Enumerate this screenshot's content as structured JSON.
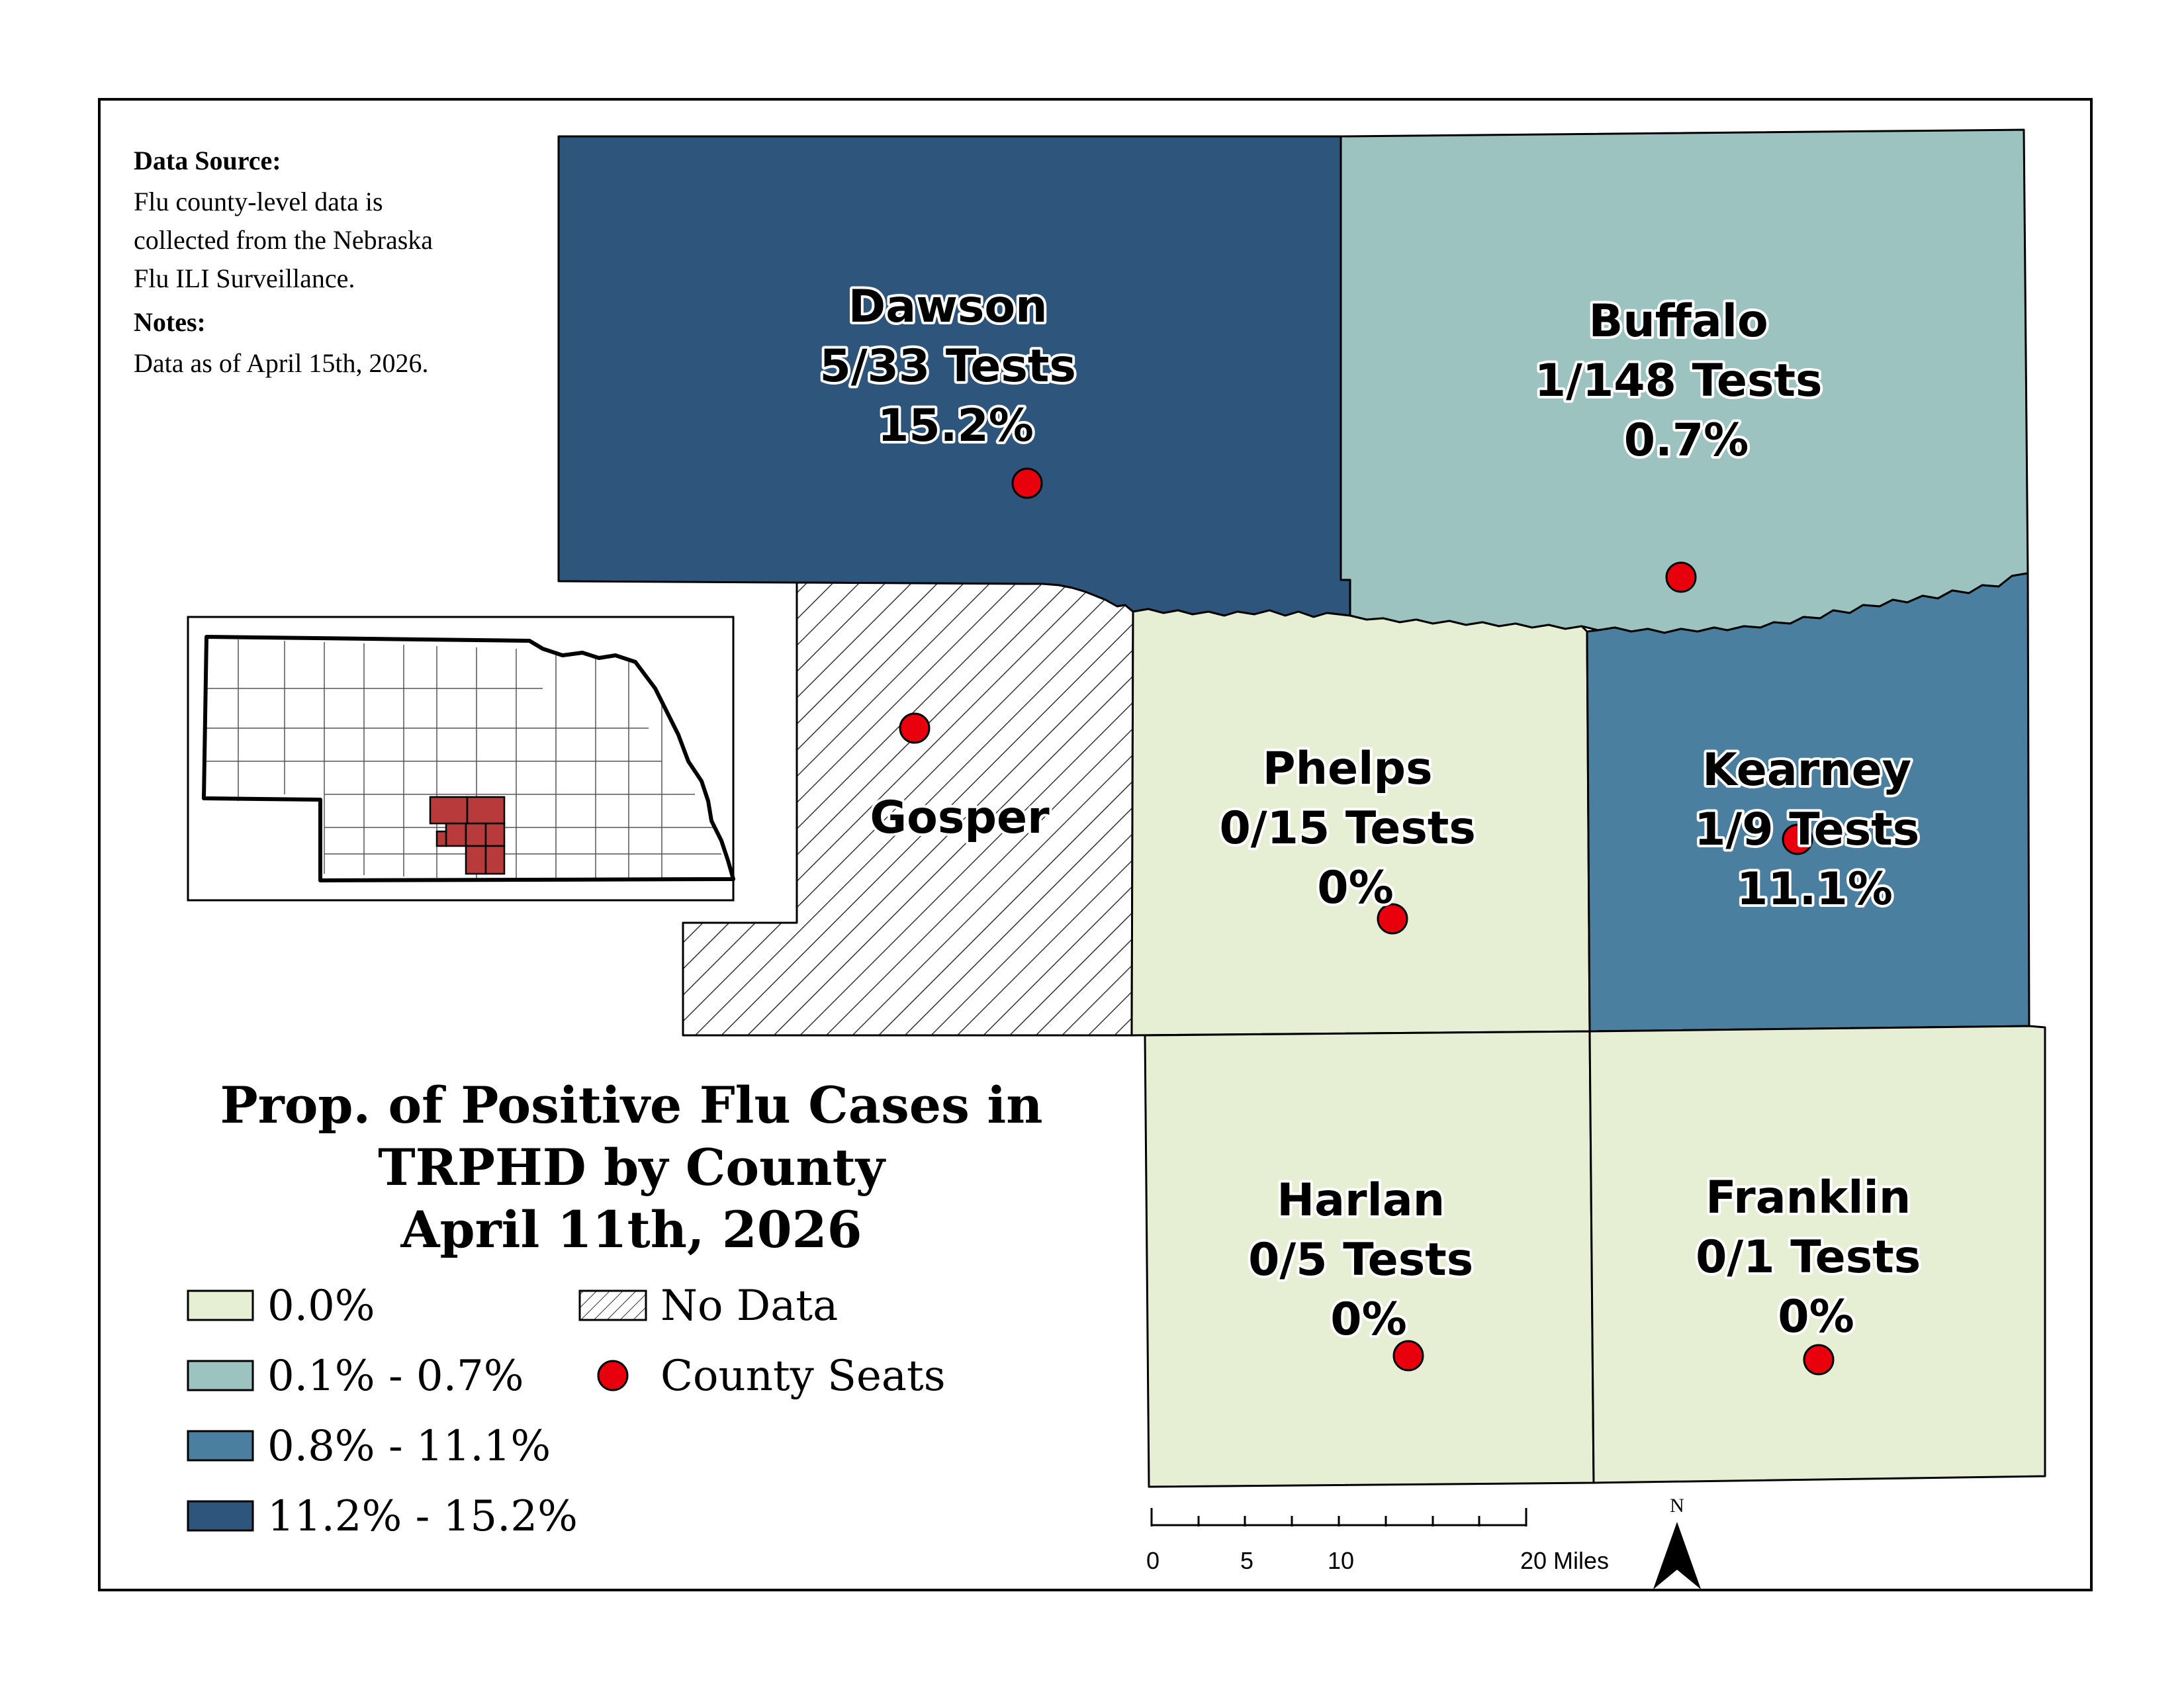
{
  "map": {
    "title_lines": [
      "Prop. of Positive Flu Cases in",
      "TRPHD by County",
      "April 11th, 2026"
    ],
    "data_source": {
      "heading": "Data Source:",
      "lines": [
        "Flu county-level data is",
        "collected from the Nebraska",
        "Flu ILI Surveillance."
      ]
    },
    "notes": {
      "heading": "Notes:",
      "lines": [
        "Data as of April 15th, 2026."
      ]
    },
    "counties": [
      {
        "name": "Dawson",
        "tests": "5/33 Tests",
        "percent": "15.2%",
        "class": "11.2% - 15.2%"
      },
      {
        "name": "Buffalo",
        "tests": "1/148 Tests",
        "percent": "0.7%",
        "class": "0.1% - 0.7%"
      },
      {
        "name": "Gosper",
        "tests": "",
        "percent": "",
        "class": "No Data"
      },
      {
        "name": "Phelps",
        "tests": "0/15 Tests",
        "percent": "0%",
        "class": "0.0%"
      },
      {
        "name": "Kearney",
        "tests": "1/9 Tests",
        "percent": "11.1%",
        "class": "0.8% - 11.1%"
      },
      {
        "name": "Harlan",
        "tests": "0/5 Tests",
        "percent": "0%",
        "class": "0.0%"
      },
      {
        "name": "Franklin",
        "tests": "0/1 Tests",
        "percent": "0%",
        "class": "0.0%"
      }
    ],
    "legend": {
      "classes": [
        {
          "label": "0.0%",
          "color": "#e6eed4"
        },
        {
          "label": "0.1% - 0.7%",
          "color": "#9cc3c0"
        },
        {
          "label": "0.8% - 11.1%",
          "color": "#4a7f9f"
        },
        {
          "label": "11.2% - 15.2%",
          "color": "#2e557c"
        }
      ],
      "no_data_label": "No Data",
      "county_seats_label": "County Seats",
      "county_seat_color": "#e8000d"
    },
    "scale_bar": {
      "ticks": [
        "0",
        "5",
        "10",
        "20 Miles"
      ]
    },
    "north_arrow": {
      "label": "N",
      "icon": "north-arrow-icon"
    },
    "inset": {
      "description_icon": "nebraska-locator-icon",
      "highlight_color": "#b83a3a"
    }
  }
}
